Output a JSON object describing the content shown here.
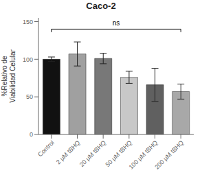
{
  "chart_data": {
    "type": "bar",
    "title": "Caco-2",
    "ylabel": "%Relativo de\nViabilidad Celular",
    "categories": [
      "Control",
      "2 μM tBHQ",
      "20 μM tBHQ",
      "50 μM tBHQ",
      "100 μM tBHQ",
      "200 μM tBHQ"
    ],
    "values": [
      100,
      107,
      101,
      76,
      66,
      57
    ],
    "errors": [
      3,
      16,
      7,
      8,
      22,
      10
    ],
    "colors": [
      "#111111",
      "#a0a0a0",
      "#787878",
      "#c8c8c8",
      "#606060",
      "#a8a8a8"
    ],
    "ylim": [
      0,
      155
    ],
    "yticks": [
      0,
      50,
      100,
      150
    ],
    "grid": false,
    "annotations": [
      {
        "text": "ns",
        "y": 140,
        "start": "Control",
        "end": "200 μM tBHQ"
      }
    ]
  }
}
